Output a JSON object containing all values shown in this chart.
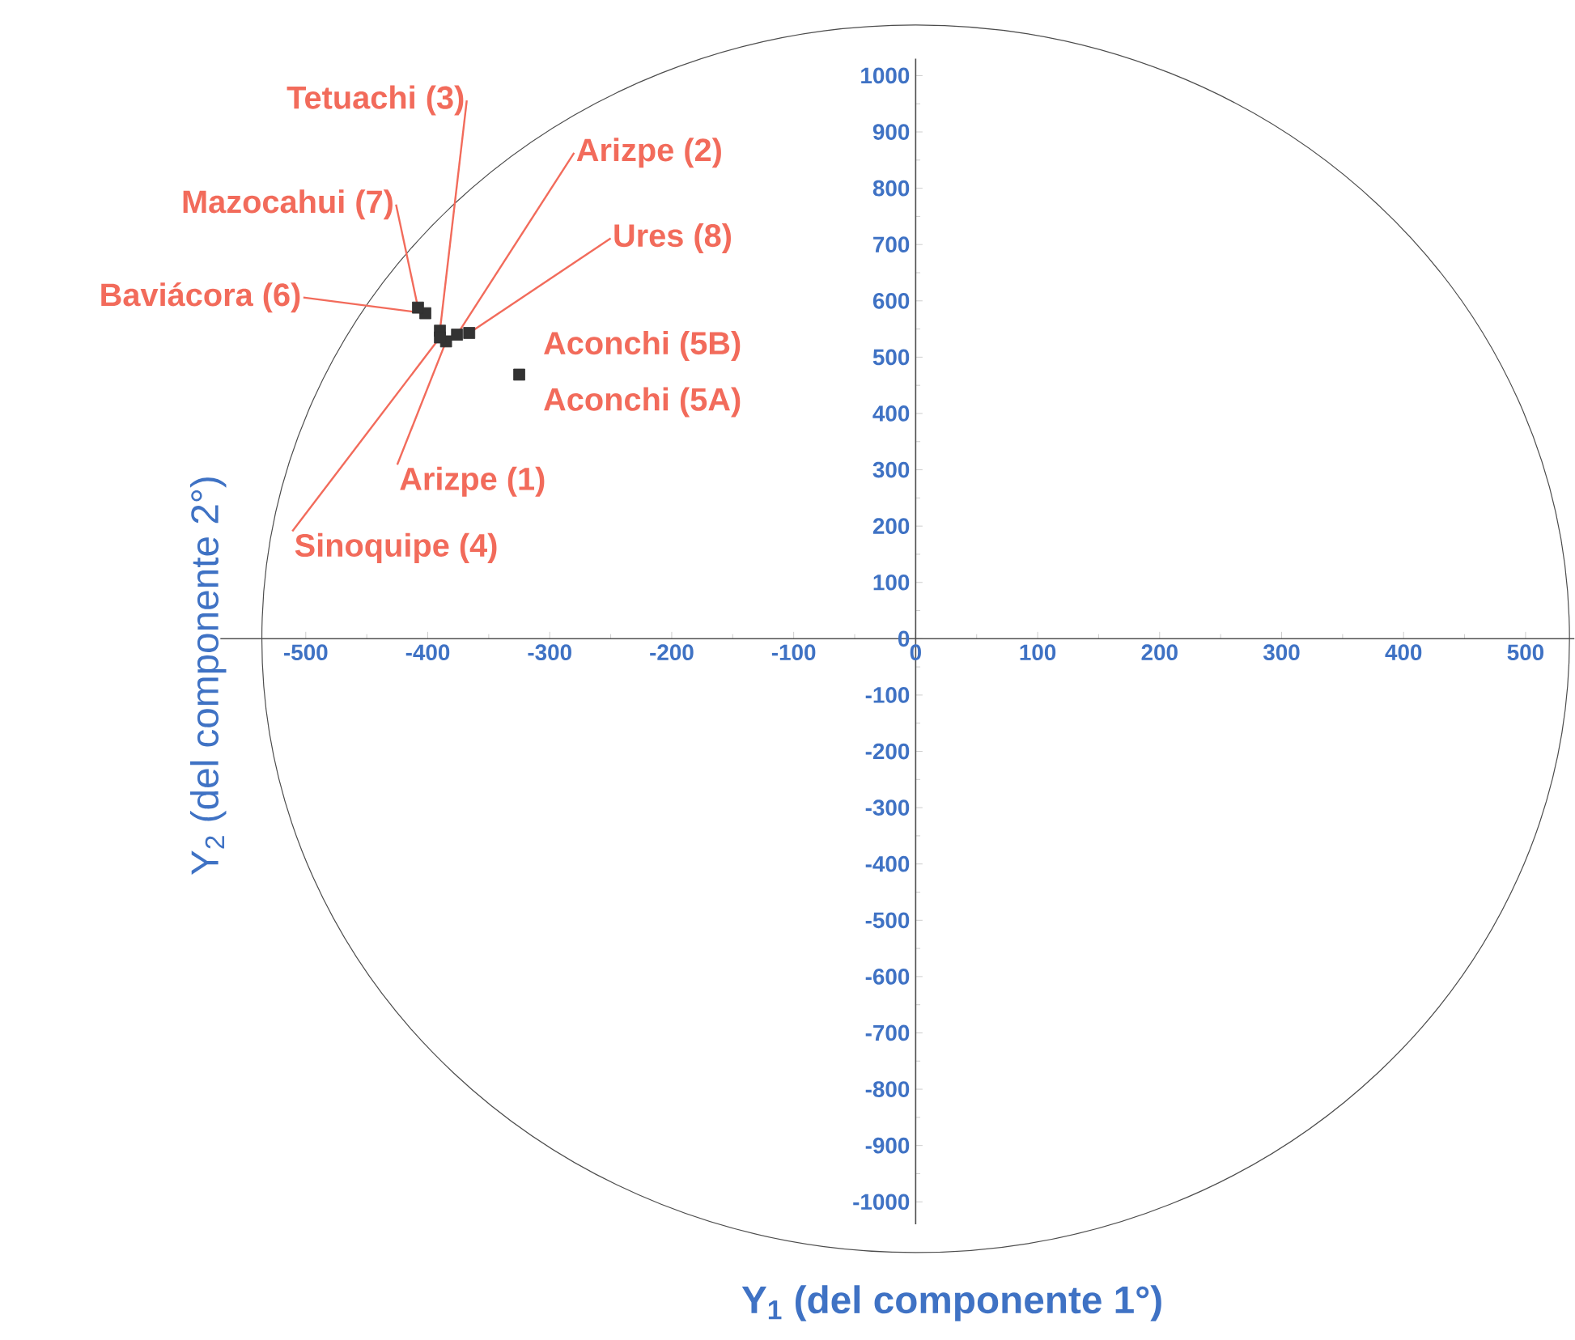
{
  "chart_data": {
    "type": "scatter",
    "xlabel": "Y$_{1}$  (del componente 1°)",
    "ylabel": "Y$_{2}$  (del componente 2°)",
    "x": [
      -385,
      -376,
      -390,
      -390,
      -325,
      -402,
      -408,
      -366
    ],
    "values": [
      528,
      540,
      547,
      535,
      469,
      578,
      588,
      543
    ],
    "color": "#333333",
    "marker": "square",
    "xlim": [
      -570,
      540
    ],
    "ylim": [
      -1040,
      1030
    ],
    "xticks": [
      -500,
      -400,
      -300,
      -200,
      -100,
      0,
      100,
      200,
      300,
      400,
      500
    ],
    "yticks": [
      -1000,
      -900,
      -800,
      -700,
      -600,
      -500,
      -400,
      -300,
      -200,
      -100,
      0,
      100,
      200,
      300,
      400,
      500,
      600,
      700,
      800,
      900,
      1000
    ],
    "annotations": [
      {
        "text": "Arizpe (1)",
        "x": -385,
        "y": 528
      },
      {
        "text": "Arizpe (2)",
        "x": -376,
        "y": 540
      },
      {
        "text": "Tetuachi (3)",
        "x": -390,
        "y": 547
      },
      {
        "text": "Sinoquipe (4)",
        "x": -390,
        "y": 535
      },
      {
        "text": "Aconchi (5A)",
        "x": -325,
        "y": 469
      },
      {
        "text": "Aconchi (5B)",
        "x": -325,
        "y": 469
      },
      {
        "text": "Baviácora (6)",
        "x": -402,
        "y": 578
      },
      {
        "text": "Mazocahui (7)",
        "x": -408,
        "y": 588
      },
      {
        "text": "Ures (8)",
        "x": -366,
        "y": 543
      }
    ]
  }
}
